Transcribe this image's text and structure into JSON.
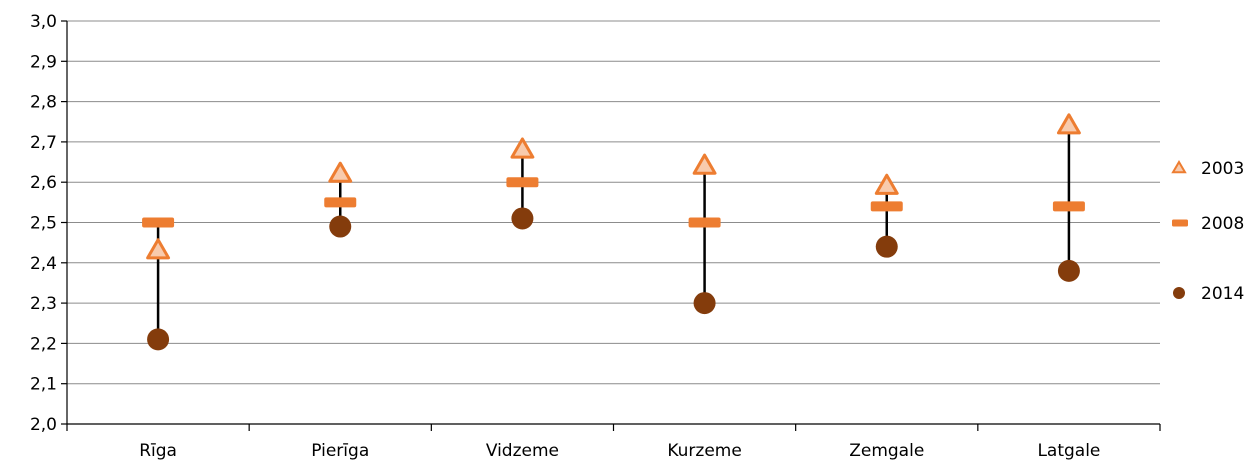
{
  "chart_data": {
    "type": "scatter",
    "title": "",
    "xlabel": "",
    "ylabel": "",
    "categories": [
      "Rīga",
      "Pierīga",
      "Vidzeme",
      "Kurzeme",
      "Zemgale",
      "Latgale"
    ],
    "ylim": [
      2.0,
      3.0
    ],
    "yticks": [
      "2,0",
      "2,1",
      "2,2",
      "2,3",
      "2,4",
      "2,5",
      "2,6",
      "2,7",
      "2,8",
      "2,9",
      "3,0"
    ],
    "grid": true,
    "legend_position": "right",
    "series": [
      {
        "name": "2003",
        "marker": "triangle",
        "color": "#ED7D31",
        "values": [
          2.43,
          2.62,
          2.68,
          2.64,
          2.59,
          2.74
        ]
      },
      {
        "name": "2008",
        "marker": "dash",
        "color": "#ED7D31",
        "values": [
          2.5,
          2.55,
          2.6,
          2.5,
          2.54,
          2.54
        ]
      },
      {
        "name": "2014",
        "marker": "circle",
        "color": "#843C0C",
        "values": [
          2.21,
          2.49,
          2.51,
          2.3,
          2.44,
          2.38
        ]
      }
    ]
  }
}
